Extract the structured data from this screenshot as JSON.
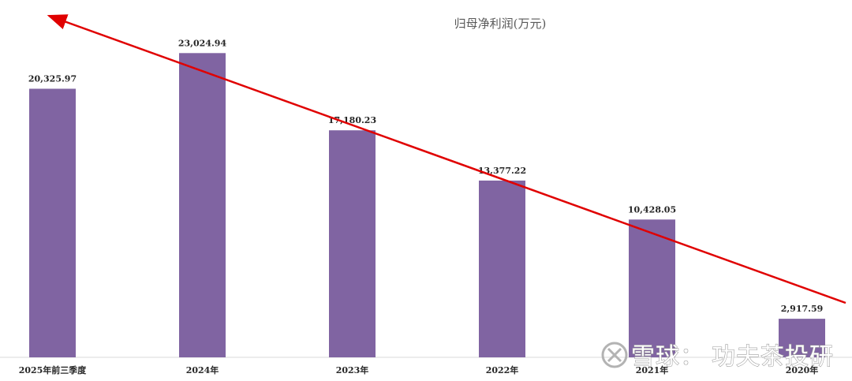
{
  "chart_data": {
    "type": "bar",
    "title": "归母净利润(万元)",
    "categories": [
      "2025年前三季度",
      "2024年",
      "2023年",
      "2022年",
      "2021年",
      "2020年"
    ],
    "values": [
      20325.97,
      23024.94,
      17180.23,
      13377.22,
      10428.05,
      2917.59
    ],
    "value_labels": [
      "20,325.97",
      "23,024.94",
      "17,180.23",
      "13,377.22",
      "10,428.05",
      "2,917.59"
    ],
    "ylim": [
      0,
      23700
    ],
    "grid": false,
    "legend": "none",
    "bar_color": "#8064a2",
    "annotations": [
      {
        "type": "arrow",
        "description": "red downward trend arrow",
        "color": "#e00000"
      }
    ]
  },
  "watermark": {
    "brand": "雪球",
    "separator": "：",
    "author": "功夫茶投研"
  }
}
